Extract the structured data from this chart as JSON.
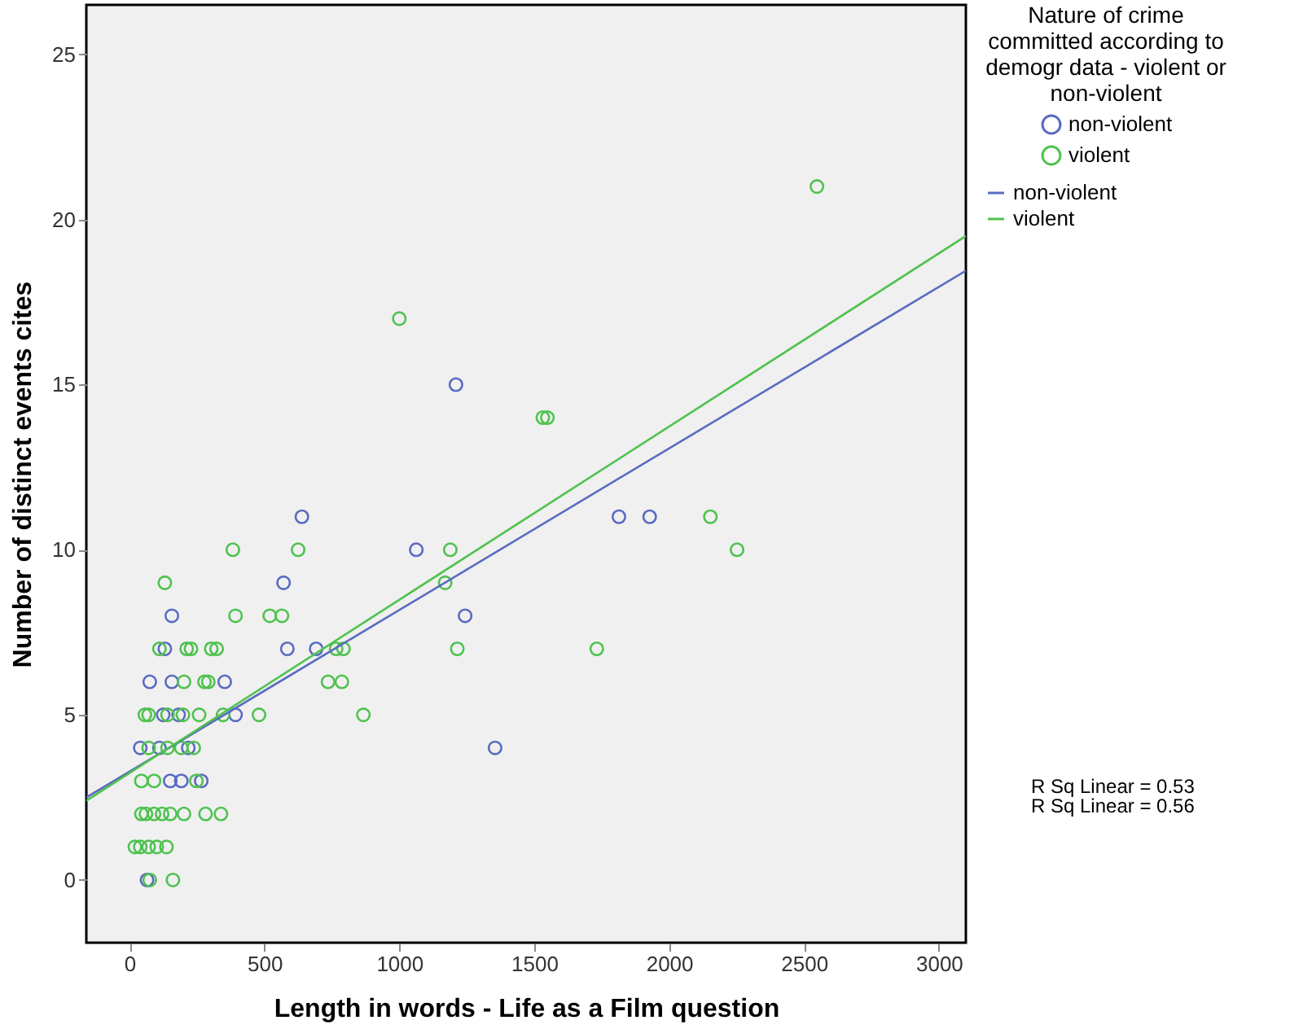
{
  "chart_data": {
    "type": "scatter",
    "xlabel": "Length in words - Life as a Film question",
    "ylabel": "Number of distinct events cites",
    "legend_title": "Nature of crime committed according to demogr data - violent or non-violent",
    "legend": "top right",
    "marker": "circle",
    "grid": false,
    "xlim": [
      -160,
      3100
    ],
    "ylim": [
      -1.9,
      26.5
    ],
    "xticks": [
      0,
      500,
      1000,
      1500,
      2000,
      2500,
      3000
    ],
    "yticks": [
      0,
      5,
      10,
      15,
      20,
      25
    ],
    "annotations": [
      "R Sq Linear = 0.53",
      "R Sq Linear = 0.56"
    ],
    "series": [
      {
        "name": "non-violent",
        "color": "#5a6bc0",
        "x": [
          1063,
          571,
          157,
          131,
          585,
          692,
          75,
          157,
          353,
          125,
          182,
          393,
          40,
          111,
          218,
          151,
          192,
          266,
          65,
          1210,
          1244,
          639,
          1814,
          1928,
          1355
        ],
        "values": [
          10,
          9,
          8,
          7,
          7,
          7,
          6,
          6,
          6,
          5,
          5,
          5,
          4,
          4,
          4,
          3,
          3,
          3,
          0,
          15,
          8,
          11,
          11,
          11,
          4
        ]
      },
      {
        "name": "violent",
        "color": "#4fc24f",
        "x": [
          383,
          625,
          1189,
          2252,
          131,
          393,
          520,
          565,
          1170,
          111,
          212,
          228,
          303,
          323,
          766,
          793,
          1215,
          1732,
          202,
          278,
          292,
          736,
          787,
          57,
          71,
          141,
          198,
          258,
          347,
          480,
          867,
          71,
          141,
          192,
          238,
          44,
          91,
          248,
          44,
          61,
          91,
          121,
          151,
          202,
          282,
          339,
          20,
          40,
          71,
          101,
          137,
          75,
          161,
          1000,
          1532,
          1549,
          2153,
          2548
        ],
        "values": [
          10,
          10,
          10,
          10,
          9,
          8,
          8,
          8,
          9,
          7,
          7,
          7,
          7,
          7,
          7,
          7,
          7,
          7,
          6,
          6,
          6,
          6,
          6,
          5,
          5,
          5,
          5,
          5,
          5,
          5,
          5,
          4,
          4,
          4,
          4,
          3,
          3,
          3,
          2,
          2,
          2,
          2,
          2,
          2,
          2,
          2,
          1,
          1,
          1,
          1,
          1,
          0,
          0,
          17,
          14,
          14,
          11,
          21
        ]
      },
      {
        "name": "non-violent",
        "type": "line",
        "marker": "none",
        "color": "#5a6bc0",
        "x": [
          -160,
          3100
        ],
        "values": [
          2.5,
          18.45
        ]
      },
      {
        "name": "violent",
        "type": "line",
        "marker": "none",
        "color": "#4fc24f",
        "x": [
          -160,
          3100
        ],
        "values": [
          2.4,
          19.5
        ]
      }
    ]
  }
}
